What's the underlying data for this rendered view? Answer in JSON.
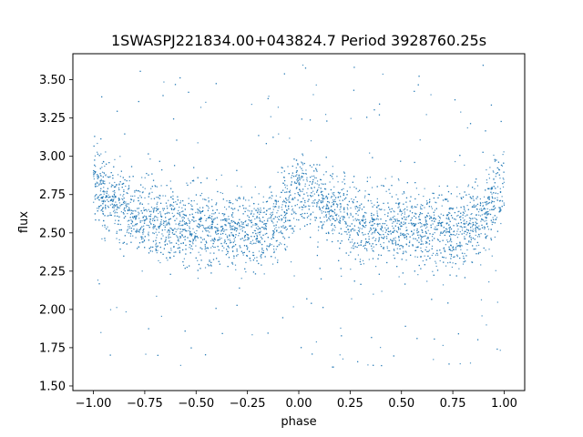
{
  "chart_data": {
    "type": "scatter",
    "title": "1SWASPJ221834.00+043824.7 Period 3928760.25s",
    "xlabel": "phase",
    "ylabel": "flux",
    "xlim": [
      -1.1,
      1.1
    ],
    "ylim": [
      1.47,
      3.67
    ],
    "xticks": [
      -1.0,
      -0.75,
      -0.5,
      -0.25,
      0.0,
      0.25,
      0.5,
      0.75,
      1.0
    ],
    "xtick_labels": [
      "−1.00",
      "−0.75",
      "−0.50",
      "−0.25",
      "0.00",
      "0.25",
      "0.50",
      "0.75",
      "1.00"
    ],
    "yticks": [
      1.5,
      1.75,
      2.0,
      2.25,
      2.5,
      2.75,
      3.0,
      3.25,
      3.5
    ],
    "ytick_labels": [
      "1.50",
      "1.75",
      "2.00",
      "2.25",
      "2.50",
      "2.75",
      "3.00",
      "3.25",
      "3.50"
    ],
    "grid": false,
    "marker_color": "#1f77b4",
    "series": [
      {
        "phase_range": [
          -1.0,
          1.0
        ],
        "points": [
          [
            -1.0,
            2.8
          ],
          [
            -0.95,
            2.76
          ],
          [
            -0.9,
            2.72
          ],
          [
            -0.85,
            2.68
          ],
          [
            -0.8,
            2.63
          ],
          [
            -0.75,
            2.59
          ],
          [
            -0.7,
            2.57
          ],
          [
            -0.65,
            2.56
          ],
          [
            -0.6,
            2.54
          ],
          [
            -0.55,
            2.53
          ],
          [
            -0.5,
            2.53
          ],
          [
            -0.45,
            2.53
          ],
          [
            -0.4,
            2.52
          ],
          [
            -0.35,
            2.52
          ],
          [
            -0.3,
            2.51
          ],
          [
            -0.25,
            2.51
          ],
          [
            -0.2,
            2.52
          ],
          [
            -0.15,
            2.55
          ],
          [
            -0.1,
            2.6
          ],
          [
            -0.05,
            2.68
          ],
          [
            0.0,
            2.8
          ],
          [
            0.05,
            2.76
          ],
          [
            0.1,
            2.72
          ],
          [
            0.15,
            2.68
          ],
          [
            0.2,
            2.63
          ],
          [
            0.25,
            2.59
          ],
          [
            0.3,
            2.57
          ],
          [
            0.35,
            2.56
          ],
          [
            0.4,
            2.54
          ],
          [
            0.45,
            2.53
          ],
          [
            0.5,
            2.53
          ],
          [
            0.55,
            2.53
          ],
          [
            0.6,
            2.52
          ],
          [
            0.65,
            2.52
          ],
          [
            0.7,
            2.51
          ],
          [
            0.75,
            2.51
          ],
          [
            0.8,
            2.52
          ],
          [
            0.85,
            2.55
          ],
          [
            0.9,
            2.6
          ],
          [
            0.95,
            2.68
          ],
          [
            1.0,
            2.8
          ]
        ],
        "scatter_sd": 0.12,
        "outlier_range": [
          1.6,
          3.6
        ]
      }
    ]
  }
}
